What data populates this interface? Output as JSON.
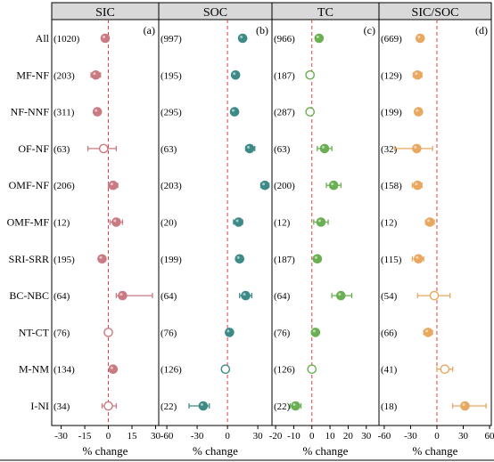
{
  "chart_data": {
    "type": "forest",
    "row_labels": [
      "All",
      "MF-NF",
      "NF-NNF",
      "OF-NF",
      "OMF-NF",
      "OMF-MF",
      "SRI-SRR",
      "BC-NBC",
      "NT-CT",
      "M-NM",
      "I-NI"
    ],
    "xlabel": "% change",
    "panels": [
      {
        "title": "SIC",
        "letter": "(a)",
        "color": "#c97a82",
        "xlim": [
          -36,
          32
        ],
        "ticks": [
          -30,
          -15,
          0,
          15,
          30
        ],
        "tick_labels": [
          "-30",
          "-15",
          "0",
          "15",
          "30"
        ],
        "n_labels": [
          "(1020)",
          "(203)",
          "(311)",
          "(63)",
          "(206)",
          "(12)",
          "(195)",
          "(64)",
          "(76)",
          "(134)",
          "(34)"
        ],
        "values": [
          -2,
          -8,
          -7,
          -3,
          3,
          5,
          -4,
          9,
          0,
          3,
          0
        ],
        "ci_low": [
          -3,
          -11,
          -9,
          -13,
          0,
          1,
          -6,
          5,
          -1,
          1,
          -4
        ],
        "ci_high": [
          -1,
          -5,
          -5,
          5,
          6,
          9,
          -2,
          28,
          1,
          5,
          5
        ],
        "filled": [
          true,
          true,
          true,
          false,
          true,
          true,
          true,
          true,
          false,
          true,
          false
        ]
      },
      {
        "title": "SOC",
        "letter": "(b)",
        "color": "#3d8a87",
        "xlim": [
          -68,
          44
        ],
        "ticks": [
          -60,
          -30,
          0,
          30
        ],
        "tick_labels": [
          "-60",
          "-30",
          "0",
          "30"
        ],
        "n_labels": [
          "(997)",
          "(195)",
          "(295)",
          "(63)",
          "(203)",
          "(20)",
          "(199)",
          "(64)",
          "(76)",
          "(126)",
          "(22)"
        ],
        "values": [
          15,
          8,
          7,
          22,
          37,
          11,
          12,
          18,
          2,
          -2,
          -24
        ],
        "ci_low": [
          13,
          6,
          5,
          18,
          33,
          6,
          10,
          12,
          0,
          -5,
          -38
        ],
        "ci_high": [
          17,
          10,
          9,
          27,
          41,
          15,
          14,
          24,
          4,
          1,
          -18
        ],
        "filled": [
          true,
          true,
          true,
          true,
          true,
          true,
          true,
          true,
          true,
          false,
          true
        ]
      },
      {
        "title": "TC",
        "letter": "(c)",
        "color": "#6aaf52",
        "xlim": [
          -22,
          37
        ],
        "ticks": [
          -20,
          -10,
          0,
          10,
          20,
          30
        ],
        "tick_labels": [
          "-20",
          "-10",
          "0",
          "10",
          "20",
          "30"
        ],
        "n_labels": [
          "(966)",
          "(187)",
          "(287)",
          "(63)",
          "(200)",
          "(12)",
          "(187)",
          "(64)",
          "(76)",
          "(126)",
          "(22)"
        ],
        "values": [
          4,
          -1,
          -1,
          7,
          12,
          5,
          3,
          16,
          2,
          0,
          -9
        ],
        "ci_low": [
          3,
          -3,
          -2,
          3,
          8,
          1,
          1,
          11,
          1,
          -1,
          -12
        ],
        "ci_high": [
          5,
          1,
          0,
          11,
          16,
          9,
          5,
          22,
          3,
          1,
          -6
        ],
        "filled": [
          true,
          false,
          false,
          true,
          true,
          true,
          true,
          true,
          true,
          false,
          true
        ]
      },
      {
        "title": "SIC/SOC",
        "letter": "(d)",
        "color": "#e8a860",
        "xlim": [
          -66,
          62
        ],
        "ticks": [
          -60,
          -30,
          0,
          30,
          60
        ],
        "tick_labels": [
          "-60",
          "-30",
          "0",
          "30",
          "60"
        ],
        "n_labels": [
          "(669)",
          "(129)",
          "(199)",
          "(32)",
          "(158)",
          "(12)",
          "(115)",
          "(54)",
          "(66)",
          "(41)",
          "(18)"
        ],
        "values": [
          -19,
          -22,
          -21,
          -23,
          -22,
          -8,
          -21,
          -3,
          -10,
          9,
          32
        ],
        "ci_low": [
          -22,
          -27,
          -25,
          -48,
          -28,
          -13,
          -28,
          -22,
          -15,
          0,
          18
        ],
        "ci_high": [
          -16,
          -17,
          -17,
          -5,
          -17,
          -3,
          -15,
          15,
          -5,
          18,
          56
        ],
        "filled": [
          true,
          true,
          true,
          true,
          true,
          true,
          true,
          false,
          true,
          false,
          true
        ]
      }
    ]
  }
}
